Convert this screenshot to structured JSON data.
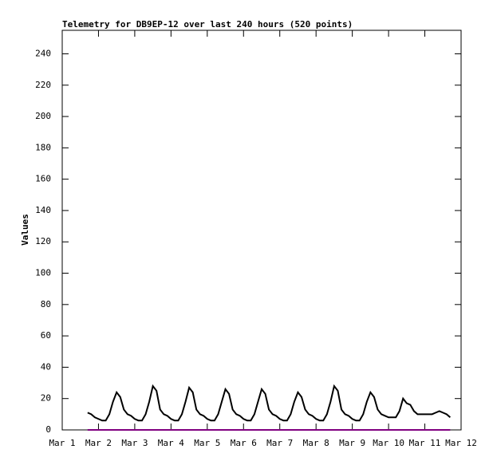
{
  "chart_data": {
    "type": "line",
    "title": "Telemetry for DB9EP-12 over last 240 hours (520 points)",
    "ylabel": "Values",
    "xlim": [
      1,
      12
    ],
    "xticks": [
      {
        "value": 1,
        "label": "Mar 1"
      },
      {
        "value": 2,
        "label": "Mar 2"
      },
      {
        "value": 3,
        "label": "Mar 3"
      },
      {
        "value": 4,
        "label": "Mar 4"
      },
      {
        "value": 5,
        "label": "Mar 5"
      },
      {
        "value": 6,
        "label": "Mar 6"
      },
      {
        "value": 7,
        "label": "Mar 7"
      },
      {
        "value": 8,
        "label": "Mar 8"
      },
      {
        "value": 9,
        "label": "Mar 9"
      },
      {
        "value": 10,
        "label": "Mar 10"
      },
      {
        "value": 11,
        "label": "Mar 11"
      },
      {
        "value": 12,
        "label": "Mar 12"
      }
    ],
    "ylim": [
      0,
      255
    ],
    "yticks": [
      0,
      20,
      40,
      60,
      80,
      100,
      120,
      140,
      160,
      180,
      200,
      220,
      240
    ],
    "grid": false,
    "series": [
      {
        "color": "#000000",
        "x": [
          1.7,
          1.8,
          1.9,
          2,
          2.1,
          2.2,
          2.3,
          2.4,
          2.5,
          2.6,
          2.7,
          2.8,
          2.9,
          3,
          3.1,
          3.2,
          3.3,
          3.4,
          3.5,
          3.6,
          3.7,
          3.8,
          3.9,
          4,
          4.1,
          4.2,
          4.3,
          4.4,
          4.5,
          4.6,
          4.7,
          4.8,
          4.9,
          5,
          5.1,
          5.2,
          5.3,
          5.4,
          5.5,
          5.6,
          5.7,
          5.8,
          5.9,
          6,
          6.1,
          6.2,
          6.3,
          6.4,
          6.5,
          6.6,
          6.7,
          6.8,
          6.9,
          7,
          7.1,
          7.2,
          7.3,
          7.4,
          7.5,
          7.6,
          7.7,
          7.8,
          7.9,
          8,
          8.1,
          8.2,
          8.3,
          8.4,
          8.5,
          8.6,
          8.7,
          8.8,
          8.9,
          9,
          9.1,
          9.2,
          9.3,
          9.4,
          9.5,
          9.6,
          9.7,
          9.8,
          9.9,
          10,
          10.1,
          10.2,
          10.3,
          10.4,
          10.5,
          10.6,
          10.7,
          10.8,
          10.9,
          11,
          11.1,
          11.2,
          11.3,
          11.4,
          11.5,
          11.6,
          11.7
        ],
        "values": [
          11,
          10,
          8,
          7,
          6,
          6,
          10,
          18,
          24,
          21,
          13,
          10,
          9,
          7,
          6,
          6,
          10,
          18,
          28,
          25,
          13,
          10,
          9,
          7,
          6,
          6,
          10,
          18,
          27,
          24,
          13,
          10,
          9,
          7,
          6,
          6,
          10,
          18,
          26,
          23,
          13,
          10,
          9,
          7,
          6,
          6,
          10,
          18,
          26,
          23,
          13,
          10,
          9,
          7,
          6,
          6,
          10,
          18,
          24,
          21,
          13,
          10,
          9,
          7,
          6,
          6,
          10,
          18,
          28,
          25,
          13,
          10,
          9,
          7,
          6,
          6,
          10,
          18,
          24,
          21,
          13,
          10,
          9,
          8,
          8,
          8,
          12,
          20,
          17,
          16,
          12,
          10,
          10,
          10,
          10,
          10,
          11,
          12,
          11,
          10,
          8
        ]
      },
      {
        "color": "#800080",
        "x": [
          1.7,
          11.7
        ],
        "values": [
          0,
          0
        ]
      }
    ]
  }
}
